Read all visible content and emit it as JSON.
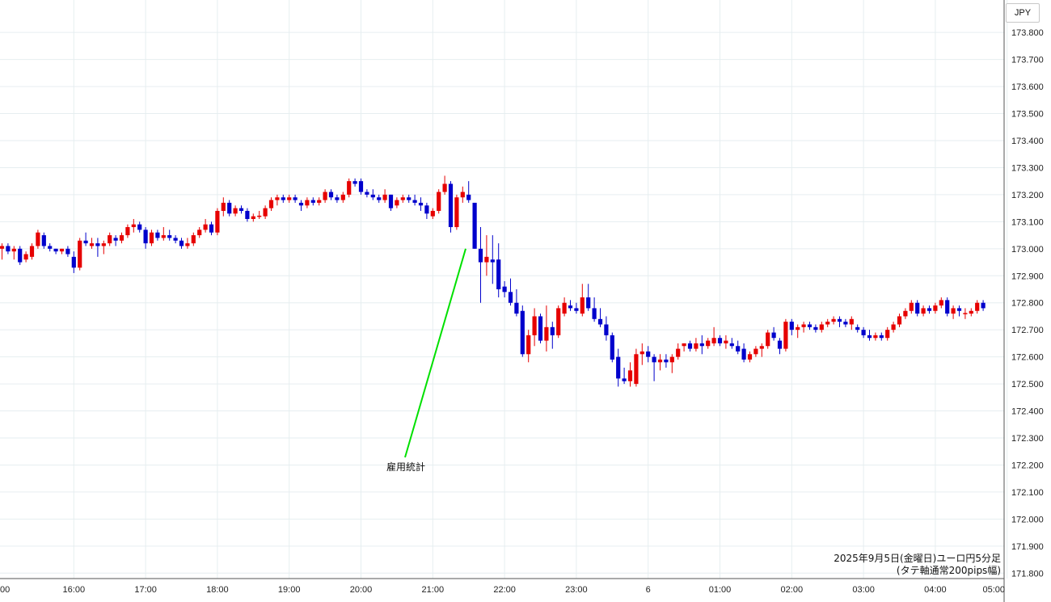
{
  "currency_label": "JPY",
  "colors": {
    "up": "#e60000",
    "down": "#0000cc",
    "annotation_line": "#00e000",
    "grid": "#e6eef0"
  },
  "annotation": {
    "text": "雇用統計",
    "points_to": {
      "time": "21:30",
      "price": 173.0
    }
  },
  "caption": {
    "line1": "2025年9月5日(金曜日)ユーロ円5分足",
    "line2": "(タテ軸通常200pips幅)"
  },
  "chart_data": {
    "type": "candlestick",
    "title": "",
    "xlabel": "",
    "ylabel": "",
    "ylim": [
      171.78,
      173.92
    ],
    "y_ticks": [
      "171.800",
      "171.900",
      "172.000",
      "172.100",
      "172.200",
      "172.300",
      "172.400",
      "172.500",
      "172.600",
      "172.700",
      "172.800",
      "172.900",
      "173.000",
      "173.100",
      "173.200",
      "173.300",
      "173.400",
      "173.500",
      "173.600",
      "173.700",
      "173.800"
    ],
    "x_ticks": [
      {
        "label": ":00",
        "slot": -0.5
      },
      {
        "label": "16:00",
        "slot": 12
      },
      {
        "label": "17:00",
        "slot": 24
      },
      {
        "label": "18:00",
        "slot": 36
      },
      {
        "label": "19:00",
        "slot": 48
      },
      {
        "label": "20:00",
        "slot": 60
      },
      {
        "label": "21:00",
        "slot": 72
      },
      {
        "label": "22:00",
        "slot": 84
      },
      {
        "label": "23:00",
        "slot": 96
      },
      {
        "label": "6",
        "slot": 108
      },
      {
        "label": "01:00",
        "slot": 120
      },
      {
        "label": "02:00",
        "slot": 132
      },
      {
        "label": "03:00",
        "slot": 144
      },
      {
        "label": "04:00",
        "slot": 156
      },
      {
        "label": "05:00",
        "slot": 168
      }
    ],
    "first_bar_time": "15:00",
    "interval_minutes": 5,
    "ohlc": [
      [
        173.0,
        173.02,
        172.96,
        173.01
      ],
      [
        173.01,
        173.02,
        172.98,
        172.99
      ],
      [
        172.99,
        173.01,
        172.96,
        173.0
      ],
      [
        173.0,
        173.01,
        172.94,
        172.95
      ],
      [
        172.96,
        172.99,
        172.95,
        172.98
      ],
      [
        172.97,
        173.02,
        172.96,
        173.01
      ],
      [
        173.01,
        173.07,
        173.0,
        173.06
      ],
      [
        173.05,
        173.06,
        173.0,
        173.01
      ],
      [
        173.01,
        173.02,
        172.99,
        173.0
      ],
      [
        173.0,
        173.0,
        172.98,
        172.99
      ],
      [
        172.99,
        173.0,
        172.98,
        173.0
      ],
      [
        173.0,
        173.01,
        172.97,
        172.98
      ],
      [
        172.97,
        172.99,
        172.91,
        172.93
      ],
      [
        172.93,
        173.04,
        172.92,
        173.03
      ],
      [
        173.03,
        173.06,
        173.01,
        173.02
      ],
      [
        173.01,
        173.04,
        173.0,
        173.02
      ],
      [
        173.02,
        173.04,
        172.97,
        173.01
      ],
      [
        173.01,
        173.03,
        172.98,
        173.02
      ],
      [
        173.02,
        173.06,
        173.01,
        173.05
      ],
      [
        173.04,
        173.05,
        173.01,
        173.03
      ],
      [
        173.03,
        173.06,
        173.02,
        173.05
      ],
      [
        173.05,
        173.09,
        173.04,
        173.08
      ],
      [
        173.08,
        173.11,
        173.06,
        173.09
      ],
      [
        173.09,
        173.1,
        173.06,
        173.07
      ],
      [
        173.07,
        173.08,
        173.0,
        173.02
      ],
      [
        173.02,
        173.07,
        173.01,
        173.06
      ],
      [
        173.06,
        173.07,
        173.03,
        173.04
      ],
      [
        173.04,
        173.08,
        173.03,
        173.05
      ],
      [
        173.05,
        173.07,
        173.03,
        173.04
      ],
      [
        173.04,
        173.05,
        173.02,
        173.03
      ],
      [
        173.03,
        173.04,
        173.0,
        173.01
      ],
      [
        173.01,
        173.04,
        173.0,
        173.02
      ],
      [
        173.02,
        173.06,
        173.01,
        173.05
      ],
      [
        173.05,
        173.08,
        173.04,
        173.07
      ],
      [
        173.07,
        173.11,
        173.06,
        173.09
      ],
      [
        173.09,
        173.1,
        173.05,
        173.06
      ],
      [
        173.06,
        173.15,
        173.05,
        173.14
      ],
      [
        173.14,
        173.19,
        173.12,
        173.17
      ],
      [
        173.17,
        173.18,
        173.12,
        173.13
      ],
      [
        173.13,
        173.16,
        173.12,
        173.15
      ],
      [
        173.15,
        173.16,
        173.13,
        173.14
      ],
      [
        173.14,
        173.15,
        173.1,
        173.11
      ],
      [
        173.11,
        173.13,
        173.1,
        173.12
      ],
      [
        173.12,
        173.14,
        173.11,
        173.12
      ],
      [
        173.12,
        173.16,
        173.11,
        173.15
      ],
      [
        173.15,
        173.19,
        173.14,
        173.18
      ],
      [
        173.18,
        173.2,
        173.16,
        173.19
      ],
      [
        173.19,
        173.2,
        173.17,
        173.18
      ],
      [
        173.18,
        173.2,
        173.17,
        173.19
      ],
      [
        173.19,
        173.2,
        173.17,
        173.18
      ],
      [
        173.17,
        173.18,
        173.14,
        173.16
      ],
      [
        173.16,
        173.19,
        173.15,
        173.18
      ],
      [
        173.18,
        173.19,
        173.16,
        173.17
      ],
      [
        173.17,
        173.19,
        173.16,
        173.18
      ],
      [
        173.18,
        173.22,
        173.17,
        173.21
      ],
      [
        173.21,
        173.22,
        173.18,
        173.19
      ],
      [
        173.19,
        173.2,
        173.17,
        173.18
      ],
      [
        173.18,
        173.21,
        173.17,
        173.2
      ],
      [
        173.2,
        173.26,
        173.19,
        173.25
      ],
      [
        173.25,
        173.26,
        173.23,
        173.24
      ],
      [
        173.25,
        173.26,
        173.2,
        173.21
      ],
      [
        173.21,
        173.22,
        173.19,
        173.2
      ],
      [
        173.2,
        173.22,
        173.18,
        173.19
      ],
      [
        173.19,
        173.2,
        173.17,
        173.18
      ],
      [
        173.18,
        173.22,
        173.17,
        173.2
      ],
      [
        173.2,
        173.2,
        173.14,
        173.15
      ],
      [
        173.16,
        173.19,
        173.15,
        173.18
      ],
      [
        173.18,
        173.2,
        173.17,
        173.19
      ],
      [
        173.19,
        173.2,
        173.17,
        173.18
      ],
      [
        173.18,
        173.2,
        173.16,
        173.17
      ],
      [
        173.17,
        173.19,
        173.14,
        173.16
      ],
      [
        173.16,
        173.17,
        173.11,
        173.13
      ],
      [
        173.12,
        173.15,
        173.11,
        173.14
      ],
      [
        173.14,
        173.22,
        173.13,
        173.21
      ],
      [
        173.21,
        173.27,
        173.2,
        173.24
      ],
      [
        173.24,
        173.25,
        173.06,
        173.08
      ],
      [
        173.08,
        173.2,
        173.07,
        173.19
      ],
      [
        173.19,
        173.23,
        173.17,
        173.21
      ],
      [
        173.2,
        173.25,
        173.17,
        173.18
      ],
      [
        173.17,
        173.17,
        173.0,
        173.0
      ],
      [
        173.0,
        173.08,
        172.8,
        172.95
      ],
      [
        172.95,
        173.05,
        172.9,
        172.97
      ],
      [
        172.96,
        173.05,
        172.87,
        172.95
      ],
      [
        172.96,
        173.02,
        172.82,
        172.85
      ],
      [
        172.86,
        172.88,
        172.82,
        172.84
      ],
      [
        172.84,
        172.89,
        172.79,
        172.8
      ],
      [
        172.8,
        172.85,
        172.75,
        172.76
      ],
      [
        172.77,
        172.79,
        172.6,
        172.61
      ],
      [
        172.61,
        172.7,
        172.58,
        172.68
      ],
      [
        172.68,
        172.78,
        172.64,
        172.75
      ],
      [
        172.75,
        172.76,
        172.65,
        172.66
      ],
      [
        172.66,
        172.79,
        172.62,
        172.71
      ],
      [
        172.71,
        172.73,
        172.63,
        172.68
      ],
      [
        172.68,
        172.79,
        172.67,
        172.78
      ],
      [
        172.76,
        172.82,
        172.75,
        172.8
      ],
      [
        172.79,
        172.81,
        172.77,
        172.78
      ],
      [
        172.78,
        172.8,
        172.76,
        172.77
      ],
      [
        172.76,
        172.87,
        172.75,
        172.82
      ],
      [
        172.82,
        172.87,
        172.77,
        172.78
      ],
      [
        172.78,
        172.82,
        172.73,
        172.74
      ],
      [
        172.74,
        172.78,
        172.71,
        172.72
      ],
      [
        172.72,
        172.75,
        172.66,
        172.68
      ],
      [
        172.68,
        172.69,
        172.58,
        172.59
      ],
      [
        172.6,
        172.63,
        172.49,
        172.52
      ],
      [
        172.52,
        172.56,
        172.5,
        172.51
      ],
      [
        172.51,
        172.58,
        172.49,
        172.55
      ],
      [
        172.5,
        172.63,
        172.49,
        172.61
      ],
      [
        172.61,
        172.65,
        172.57,
        172.62
      ],
      [
        172.62,
        172.64,
        172.58,
        172.6
      ],
      [
        172.6,
        172.61,
        172.51,
        172.58
      ],
      [
        172.58,
        172.61,
        172.55,
        172.59
      ],
      [
        172.59,
        172.61,
        172.56,
        172.58
      ],
      [
        172.58,
        172.61,
        172.54,
        172.6
      ],
      [
        172.6,
        172.65,
        172.59,
        172.63
      ],
      [
        172.64,
        172.65,
        172.62,
        172.65
      ],
      [
        172.65,
        172.66,
        172.62,
        172.63
      ],
      [
        172.63,
        172.67,
        172.62,
        172.65
      ],
      [
        172.65,
        172.68,
        172.61,
        172.64
      ],
      [
        172.64,
        172.67,
        172.63,
        172.66
      ],
      [
        172.65,
        172.71,
        172.64,
        172.67
      ],
      [
        172.67,
        172.68,
        172.64,
        172.65
      ],
      [
        172.65,
        172.68,
        172.63,
        172.66
      ],
      [
        172.65,
        172.67,
        172.63,
        172.64
      ],
      [
        172.64,
        172.66,
        172.61,
        172.62
      ],
      [
        172.63,
        172.65,
        172.58,
        172.59
      ],
      [
        172.59,
        172.62,
        172.58,
        172.61
      ],
      [
        172.61,
        172.64,
        172.6,
        172.63
      ],
      [
        172.63,
        172.65,
        172.6,
        172.64
      ],
      [
        172.64,
        172.7,
        172.63,
        172.69
      ],
      [
        172.69,
        172.71,
        172.66,
        172.67
      ],
      [
        172.66,
        172.67,
        172.61,
        172.63
      ],
      [
        172.63,
        172.74,
        172.62,
        172.73
      ],
      [
        172.73,
        172.74,
        172.68,
        172.7
      ],
      [
        172.7,
        172.72,
        172.67,
        172.71
      ],
      [
        172.71,
        172.73,
        172.69,
        172.72
      ],
      [
        172.72,
        172.73,
        172.7,
        172.71
      ],
      [
        172.71,
        172.72,
        172.69,
        172.7
      ],
      [
        172.7,
        172.73,
        172.69,
        172.72
      ],
      [
        172.72,
        172.74,
        172.71,
        172.73
      ],
      [
        172.73,
        172.75,
        172.72,
        172.74
      ],
      [
        172.74,
        172.75,
        172.71,
        172.73
      ],
      [
        172.73,
        172.74,
        172.71,
        172.72
      ],
      [
        172.72,
        172.75,
        172.7,
        172.74
      ],
      [
        172.71,
        172.72,
        172.69,
        172.7
      ],
      [
        172.7,
        172.71,
        172.67,
        172.68
      ],
      [
        172.68,
        172.7,
        172.66,
        172.67
      ],
      [
        172.67,
        172.69,
        172.66,
        172.68
      ],
      [
        172.68,
        172.69,
        172.66,
        172.67
      ],
      [
        172.67,
        172.71,
        172.66,
        172.7
      ],
      [
        172.7,
        172.73,
        172.69,
        172.72
      ],
      [
        172.72,
        172.76,
        172.71,
        172.75
      ],
      [
        172.75,
        172.78,
        172.74,
        172.77
      ],
      [
        172.77,
        172.81,
        172.76,
        172.8
      ],
      [
        172.8,
        172.81,
        172.75,
        172.76
      ],
      [
        172.76,
        172.79,
        172.75,
        172.78
      ],
      [
        172.78,
        172.79,
        172.76,
        172.77
      ],
      [
        172.77,
        172.8,
        172.76,
        172.79
      ],
      [
        172.79,
        172.82,
        172.78,
        172.81
      ],
      [
        172.81,
        172.82,
        172.75,
        172.76
      ],
      [
        172.76,
        172.79,
        172.74,
        172.78
      ],
      [
        172.78,
        172.79,
        172.75,
        172.77
      ],
      [
        172.76,
        172.78,
        172.74,
        172.76
      ],
      [
        172.76,
        172.78,
        172.75,
        172.77
      ],
      [
        172.77,
        172.81,
        172.76,
        172.8
      ],
      [
        172.8,
        172.81,
        172.77,
        172.78
      ]
    ]
  }
}
